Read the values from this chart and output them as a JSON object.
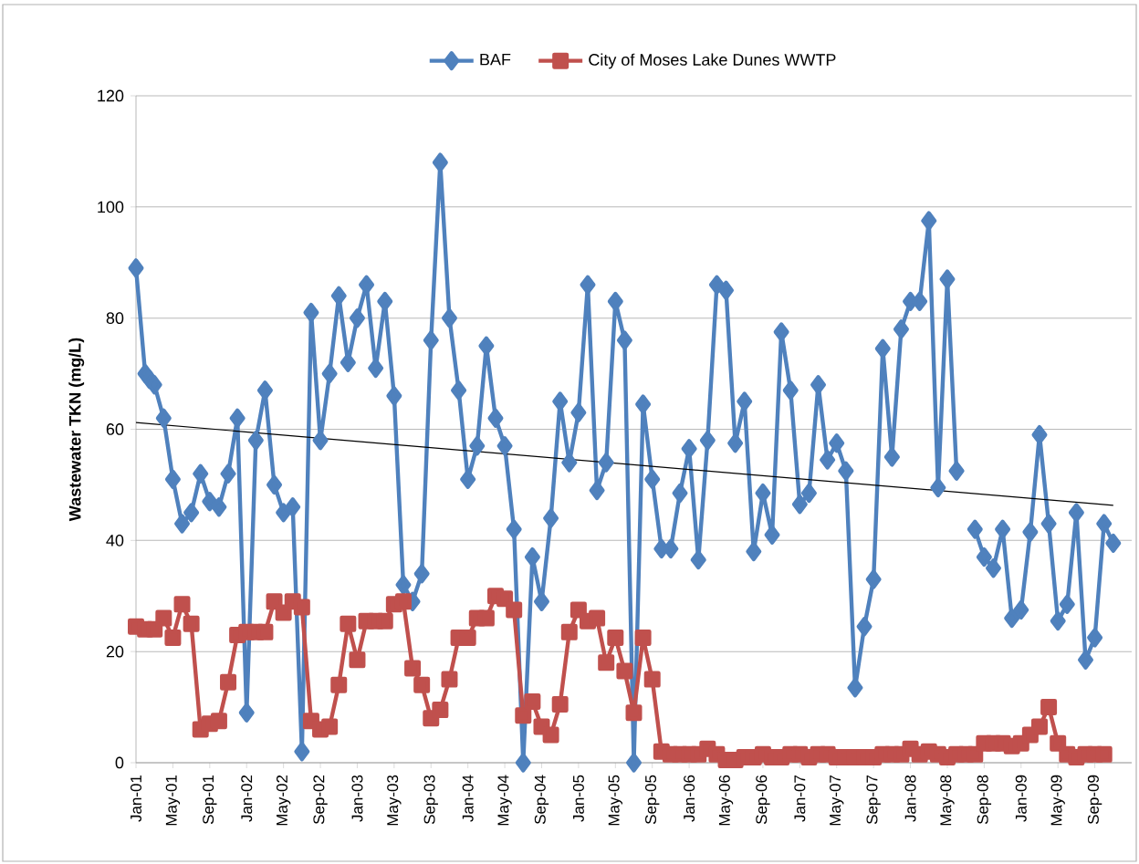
{
  "chart_data": {
    "type": "line",
    "ylabel": "Wastewater TKN (mg/L)",
    "xlim": [
      "2001-01",
      "2010-01"
    ],
    "xticks": [
      {
        "value": "2001-01",
        "label": "Jan-01"
      },
      {
        "value": "2001-05",
        "label": "May-01"
      },
      {
        "value": "2001-09",
        "label": "Sep-01"
      },
      {
        "value": "2002-01",
        "label": "Jan-02"
      },
      {
        "value": "2002-05",
        "label": "May-02"
      },
      {
        "value": "2002-09",
        "label": "Sep-02"
      },
      {
        "value": "2003-01",
        "label": "Jan-03"
      },
      {
        "value": "2003-05",
        "label": "May-03"
      },
      {
        "value": "2003-09",
        "label": "Sep-03"
      },
      {
        "value": "2004-01",
        "label": "Jan-04"
      },
      {
        "value": "2004-05",
        "label": "May-04"
      },
      {
        "value": "2004-09",
        "label": "Sep-04"
      },
      {
        "value": "2005-01",
        "label": "Jan-05"
      },
      {
        "value": "2005-05",
        "label": "May-05"
      },
      {
        "value": "2005-09",
        "label": "Sep-05"
      },
      {
        "value": "2006-01",
        "label": "Jan-06"
      },
      {
        "value": "2006-05",
        "label": "May-06"
      },
      {
        "value": "2006-09",
        "label": "Sep-06"
      },
      {
        "value": "2007-01",
        "label": "Jan-07"
      },
      {
        "value": "2007-05",
        "label": "May-07"
      },
      {
        "value": "2007-09",
        "label": "Sep-07"
      },
      {
        "value": "2008-01",
        "label": "Jan-08"
      },
      {
        "value": "2008-05",
        "label": "May-08"
      },
      {
        "value": "2008-09",
        "label": "Sep-08"
      },
      {
        "value": "2009-01",
        "label": "Jan-09"
      },
      {
        "value": "2009-05",
        "label": "May-09"
      },
      {
        "value": "2009-09",
        "label": "Sep-09"
      }
    ],
    "ylim": [
      0,
      120
    ],
    "yticks": [
      0,
      20,
      40,
      60,
      80,
      100,
      120
    ],
    "grid": "y",
    "legend": "top",
    "series": [
      {
        "name": "BAF",
        "color": "#4f81bd",
        "marker": "diamond",
        "line_style": "solid",
        "x": [
          "2001-01",
          "2001-02",
          "2001-02-15",
          "2001-03",
          "2001-04",
          "2001-05",
          "2001-06",
          "2001-07",
          "2001-08",
          "2001-09",
          "2001-10",
          "2001-11",
          "2001-12",
          "2002-01",
          "2002-02",
          "2002-03",
          "2002-04",
          "2002-05",
          "2002-06",
          "2002-07",
          "2002-08",
          "2002-09",
          "2002-10",
          "2002-11",
          "2002-12",
          "2003-01",
          "2003-02",
          "2003-03",
          "2003-04",
          "2003-05",
          "2003-06",
          "2003-07",
          "2003-08",
          "2003-09",
          "2003-10",
          "2003-11",
          "2003-12",
          "2004-01",
          "2004-02",
          "2004-03",
          "2004-04",
          "2004-05",
          "2004-06",
          "2004-07",
          "2004-08",
          "2004-09",
          "2004-10",
          "2004-11",
          "2004-12",
          "2005-01",
          "2005-02",
          "2005-03",
          "2005-04",
          "2005-05",
          "2005-06",
          "2005-07",
          "2005-08",
          "2005-09",
          "2005-10",
          "2005-11",
          "2005-12",
          "2006-01",
          "2006-02",
          "2006-03",
          "2006-04",
          "2006-05",
          "2006-06",
          "2006-07",
          "2006-08",
          "2006-09",
          "2006-10",
          "2006-11",
          "2006-12",
          "2007-01",
          "2007-02",
          "2007-03",
          "2007-04",
          "2007-05",
          "2007-06",
          "2007-07",
          "2007-08",
          "2007-09",
          "2007-10",
          "2007-11",
          "2007-12",
          "2008-01",
          "2008-02",
          "2008-03",
          "2008-04",
          "2008-05",
          "2008-06",
          "2008-07",
          "2008-08",
          "2008-09",
          "2008-10",
          "2008-11",
          "2008-12",
          "2009-01",
          "2009-02",
          "2009-03",
          "2009-04",
          "2009-05",
          "2009-06",
          "2009-07",
          "2009-08",
          "2009-09",
          "2009-10",
          "2009-11"
        ],
        "values": [
          89,
          70,
          69,
          68,
          62,
          51,
          43,
          45,
          52,
          47,
          46,
          52,
          62,
          9,
          58,
          67,
          50,
          45,
          46,
          2,
          81,
          58,
          70,
          84,
          72,
          80,
          86,
          71,
          83,
          66,
          32,
          29,
          34,
          76,
          108,
          80,
          67,
          51,
          57,
          75,
          62,
          57,
          42,
          0,
          37,
          29,
          44,
          65,
          54,
          63,
          86,
          49,
          54,
          83,
          76,
          0,
          64.5,
          51,
          38.5,
          38.5,
          48.5,
          56.5,
          36.5,
          58,
          86,
          85,
          57.5,
          65,
          38,
          48.5,
          41,
          77.5,
          67,
          46.5,
          48.5,
          68,
          54.5,
          57.5,
          52.5,
          13.5,
          24.5,
          33,
          74.5,
          55,
          78,
          83,
          83,
          97.5,
          49.5,
          87,
          52.5,
          null,
          42,
          37,
          35,
          42,
          26,
          27.5,
          41.5,
          59,
          43,
          25.5,
          28.5,
          45,
          18.5,
          22.5,
          43,
          39.5
        ]
      },
      {
        "name": "City of Moses Lake Dunes WWTP",
        "color": "#c0504d",
        "marker": "square",
        "line_style": "solid",
        "x": [
          "2001-01",
          "2001-02",
          "2001-03",
          "2001-04",
          "2001-05",
          "2001-06",
          "2001-07",
          "2001-08",
          "2001-09",
          "2001-10",
          "2001-11",
          "2001-12",
          "2002-01",
          "2002-02",
          "2002-03",
          "2002-04",
          "2002-05",
          "2002-06",
          "2002-07",
          "2002-08",
          "2002-09",
          "2002-10",
          "2002-11",
          "2002-12",
          "2003-01",
          "2003-02",
          "2003-03",
          "2003-04",
          "2003-05",
          "2003-06",
          "2003-07",
          "2003-08",
          "2003-09",
          "2003-10",
          "2003-11",
          "2003-12",
          "2004-01",
          "2004-02",
          "2004-03",
          "2004-04",
          "2004-05",
          "2004-06",
          "2004-07",
          "2004-08",
          "2004-09",
          "2004-10",
          "2004-11",
          "2004-12",
          "2005-01",
          "2005-02",
          "2005-03",
          "2005-04",
          "2005-05",
          "2005-06",
          "2005-07",
          "2005-08",
          "2005-09",
          "2005-10",
          "2005-11",
          "2005-12",
          "2006-01",
          "2006-02",
          "2006-03",
          "2006-04",
          "2006-05",
          "2006-06",
          "2006-07",
          "2006-08",
          "2006-09",
          "2006-10",
          "2006-11",
          "2006-12",
          "2007-01",
          "2007-02",
          "2007-03",
          "2007-04",
          "2007-05",
          "2007-06",
          "2007-07",
          "2007-08",
          "2007-09",
          "2007-10",
          "2007-11",
          "2007-12",
          "2008-01",
          "2008-02",
          "2008-03",
          "2008-04",
          "2008-05",
          "2008-06",
          "2008-07",
          "2008-08",
          "2008-09",
          "2008-10",
          "2008-11",
          "2008-12",
          "2009-01",
          "2009-02",
          "2009-03",
          "2009-04",
          "2009-05",
          "2009-06",
          "2009-07",
          "2009-08",
          "2009-09",
          "2009-10"
        ],
        "values": [
          24.5,
          24,
          24,
          26,
          22.5,
          28.5,
          25,
          6,
          7,
          7.5,
          14.5,
          23,
          23.5,
          23.5,
          23.5,
          29,
          27,
          29,
          28,
          7.5,
          6,
          6.5,
          14,
          25,
          18.5,
          25.5,
          25.5,
          25.5,
          28.5,
          29,
          17,
          14,
          8,
          9.5,
          15,
          22.5,
          22.5,
          26,
          26,
          30,
          29.5,
          27.5,
          8.5,
          11,
          6.5,
          5,
          10.5,
          23.5,
          27.5,
          25.5,
          26,
          18,
          22.5,
          16.5,
          9,
          22.5,
          15,
          2,
          1.5,
          1.5,
          1.5,
          1.5,
          2.5,
          1.5,
          0.5,
          0.5,
          1,
          1,
          1.5,
          1,
          1,
          1.5,
          1.5,
          1,
          1.5,
          1.5,
          1,
          1,
          1,
          1,
          1,
          1.5,
          1.5,
          1.5,
          2.5,
          1.5,
          2,
          1.5,
          1,
          1.5,
          1.5,
          1.5,
          3.5,
          3.5,
          3.5,
          3,
          3.5,
          5,
          6.5,
          10,
          3.5,
          1.5,
          1,
          1.5,
          1.5,
          1.5
        ]
      },
      {
        "color": "#000000",
        "marker": "none",
        "line_style": "solid",
        "x": [
          "2001-01",
          "2009-11"
        ],
        "values": [
          61.2,
          46.3
        ]
      }
    ]
  }
}
